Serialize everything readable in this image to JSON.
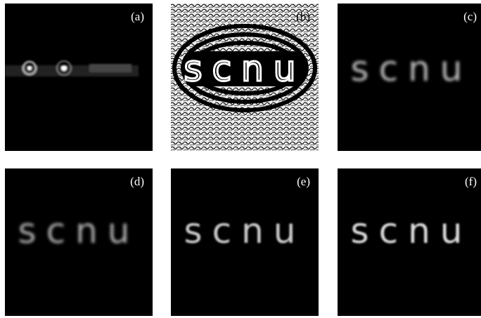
{
  "panels": [
    {
      "label": "(a)"
    },
    {
      "label": "(b)"
    },
    {
      "label": "(c)"
    },
    {
      "label": "(d)"
    },
    {
      "label": "(e)"
    },
    {
      "label": "(f)"
    }
  ],
  "object_text": "scnu"
}
